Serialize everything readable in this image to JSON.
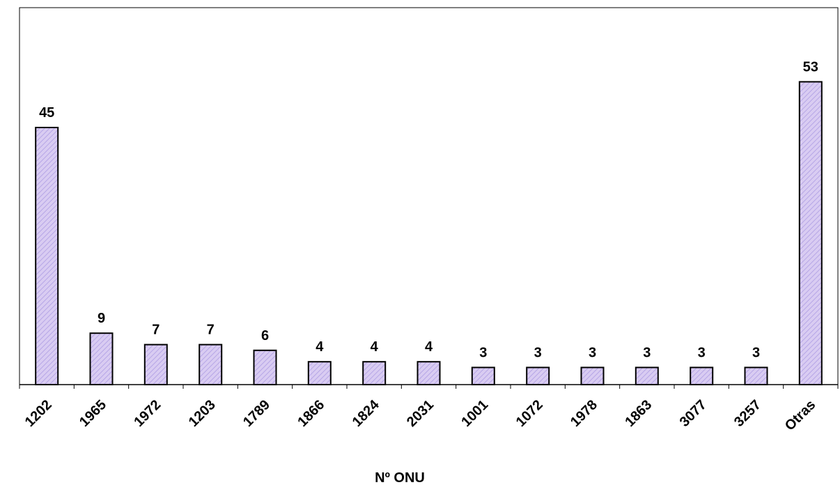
{
  "chart_data": {
    "type": "bar",
    "title": "",
    "xlabel": "Nº ONU",
    "ylabel": "",
    "categories": [
      "1202",
      "1965",
      "1972",
      "1203",
      "1789",
      "1866",
      "1824",
      "2031",
      "1001",
      "1072",
      "1978",
      "1863",
      "3077",
      "3257",
      "Otras"
    ],
    "values": [
      45,
      9,
      7,
      7,
      6,
      4,
      4,
      4,
      3,
      3,
      3,
      3,
      3,
      3,
      53
    ],
    "ylim": [
      0,
      60
    ],
    "grid": false,
    "legend": "none",
    "data_labels": true,
    "bar_fill": "#d9ccf2",
    "bar_hatch": "#b6a6e6",
    "bar_stroke": "#000000"
  }
}
